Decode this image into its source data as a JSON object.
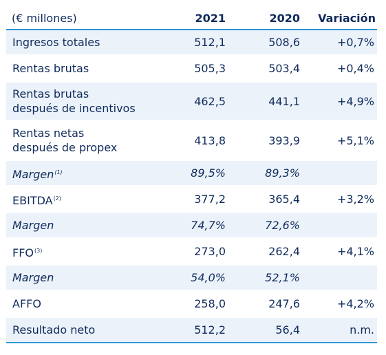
{
  "table": {
    "headers": {
      "label": "(€ millones)",
      "y2021": "2021",
      "y2020": "2020",
      "variation": "Variación"
    },
    "rows": [
      {
        "line1": "Ingresos totales",
        "line2": "",
        "sup": "",
        "v2021": "512,1",
        "v2020": "508,6",
        "variation": "+0,7%"
      },
      {
        "line1": "Rentas brutas",
        "line2": "",
        "sup": "",
        "v2021": "505,3",
        "v2020": "503,4",
        "variation": "+0,4%"
      },
      {
        "line1": "Rentas brutas",
        "line2": "después de incentivos",
        "sup": "",
        "v2021": "462,5",
        "v2020": "441,1",
        "variation": "+4,9%"
      },
      {
        "line1": "Rentas netas",
        "line2": "después de propex",
        "sup": "",
        "v2021": "413,8",
        "v2020": "393,9",
        "variation": "+5,1%"
      },
      {
        "line1": "Margen",
        "line2": "",
        "sup": "(1)",
        "v2021": "89,5%",
        "v2020": "89,3%",
        "variation": ""
      },
      {
        "line1": "EBITDA",
        "line2": "",
        "sup": "(2)",
        "v2021": "377,2",
        "v2020": "365,4",
        "variation": "+3,2%"
      },
      {
        "line1": "Margen",
        "line2": "",
        "sup": "",
        "v2021": "74,7%",
        "v2020": "72,6%",
        "variation": ""
      },
      {
        "line1": "FFO",
        "line2": "",
        "sup": "(3)",
        "v2021": "273,0",
        "v2020": "262,4",
        "variation": "+4,1%"
      },
      {
        "line1": "Margen",
        "line2": "",
        "sup": "",
        "v2021": "54,0%",
        "v2020": "52,1%",
        "variation": ""
      },
      {
        "line1": "AFFO",
        "line2": "",
        "sup": "",
        "v2021": "258,0",
        "v2020": "247,6",
        "variation": "+4,2%"
      },
      {
        "line1": "Resultado neto",
        "line2": "",
        "sup": "",
        "v2021": "512,2",
        "v2020": "56,4",
        "variation": "n.m."
      }
    ]
  },
  "colors": {
    "text": "#0f2b5b",
    "accent_rule": "#2f97d1",
    "row_shade": "#ebf2fa"
  }
}
